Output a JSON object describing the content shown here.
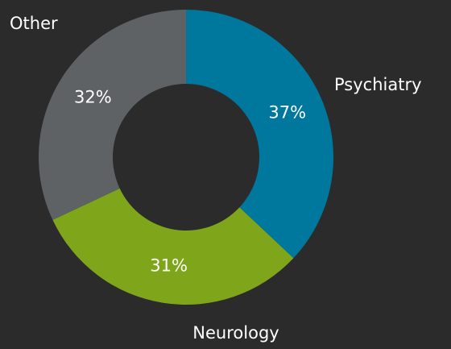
{
  "chart_data": {
    "type": "donut",
    "categories": [
      "Psychiatry",
      "Neurology",
      "Other"
    ],
    "values": [
      37,
      31,
      32
    ],
    "value_labels": [
      "37%",
      "31%",
      "32%"
    ],
    "colors": [
      "#00779c",
      "#7fa51b",
      "#5e6265"
    ]
  }
}
